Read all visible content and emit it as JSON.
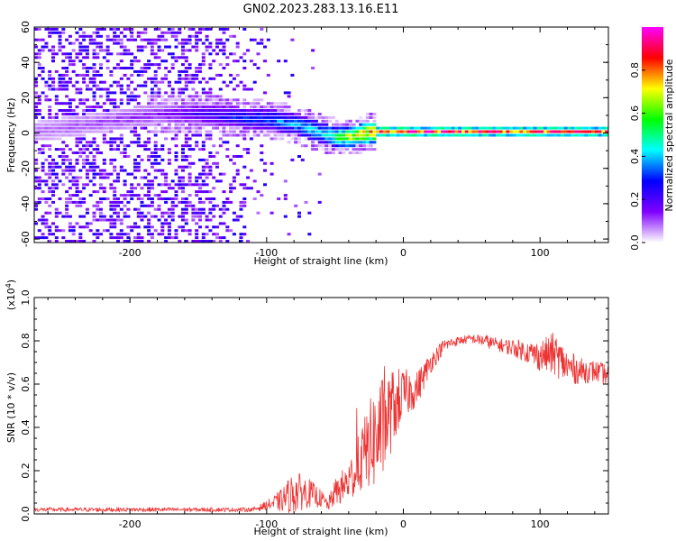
{
  "figure": {
    "title": "GN02.2023.283.13.16.E11"
  },
  "chart_data": [
    {
      "type": "heatmap",
      "xlabel": "Height of straight line (km)",
      "ylabel": "Frequency (Hz)",
      "xlim": [
        -270,
        150
      ],
      "ylim": [
        -62,
        60
      ],
      "xticks": [
        -200,
        -100,
        0,
        100
      ],
      "xtick_labels": [
        "-200",
        "-100",
        "0",
        "100"
      ],
      "yticks": [
        60,
        40,
        20,
        0,
        -20,
        -40,
        -60
      ],
      "ytick_labels": [
        "60",
        "40",
        "20",
        "0",
        "-20",
        "-40",
        "-60"
      ],
      "grid": false,
      "trend": {
        "x": [
          -270,
          -180,
          -150,
          -120,
          -100,
          -80,
          -60,
          -50,
          -40,
          -30,
          -20,
          0,
          150
        ],
        "y": [
          0,
          10,
          10,
          8,
          7,
          4,
          -1,
          -3,
          -3,
          -1,
          0,
          0,
          0
        ],
        "amp": [
          0.1,
          0.15,
          0.25,
          0.35,
          0.4,
          0.45,
          0.55,
          0.65,
          0.8,
          0.9,
          0.95,
          1.0,
          0.95
        ]
      },
      "colorbar": {
        "label": "Normalized spectral amplitude",
        "range": [
          0,
          1
        ],
        "ticks": [
          0.0,
          0.2,
          0.4,
          0.6,
          0.8
        ],
        "tick_labels": [
          "0.0",
          "0.2",
          "0.4",
          "0.6",
          "0.8"
        ],
        "colors": [
          "#ffffff",
          "#7f00ff",
          "#0000ff",
          "#00ffff",
          "#00ff00",
          "#ffff00",
          "#ff0000",
          "#ff00ff"
        ]
      }
    },
    {
      "type": "line",
      "xlabel": "Height of straight line (km)",
      "ylabel": "SNR (10 * v/v)",
      "scale_note": "(x10",
      "scale_exp": "4",
      "scale_close": ")",
      "xlim": [
        -270,
        150
      ],
      "ylim": [
        0,
        1.0
      ],
      "xticks": [
        -200,
        -100,
        0,
        100
      ],
      "xtick_labels": [
        "-200",
        "-100",
        "0",
        "100"
      ],
      "yticks": [
        0.0,
        0.2,
        0.4,
        0.6,
        0.8,
        1.0
      ],
      "ytick_labels": [
        "0.0",
        "0.2",
        "0.4",
        "0.6",
        "0.8",
        "1.0"
      ],
      "line_color": "#ee3333",
      "x": [
        -270,
        -200,
        -150,
        -110,
        -100,
        -90,
        -80,
        -70,
        -60,
        -55,
        -50,
        -45,
        -40,
        -35,
        -30,
        -25,
        -20,
        -15,
        -10,
        -5,
        0,
        10,
        20,
        30,
        40,
        50,
        60,
        70,
        80,
        90,
        100,
        110,
        120,
        130,
        140,
        150
      ],
      "y": [
        0.02,
        0.02,
        0.02,
        0.02,
        0.04,
        0.06,
        0.1,
        0.1,
        0.07,
        0.04,
        0.1,
        0.12,
        0.15,
        0.2,
        0.26,
        0.32,
        0.35,
        0.4,
        0.46,
        0.52,
        0.55,
        0.58,
        0.7,
        0.78,
        0.8,
        0.81,
        0.8,
        0.78,
        0.77,
        0.75,
        0.73,
        0.74,
        0.68,
        0.66,
        0.66,
        0.64
      ],
      "noise": [
        0.01,
        0.01,
        0.01,
        0.01,
        0.02,
        0.05,
        0.1,
        0.07,
        0.04,
        0.03,
        0.06,
        0.08,
        0.1,
        0.12,
        0.16,
        0.2,
        0.25,
        0.24,
        0.2,
        0.16,
        0.12,
        0.08,
        0.05,
        0.03,
        0.02,
        0.02,
        0.03,
        0.03,
        0.04,
        0.05,
        0.07,
        0.1,
        0.08,
        0.06,
        0.05,
        0.05
      ]
    }
  ]
}
